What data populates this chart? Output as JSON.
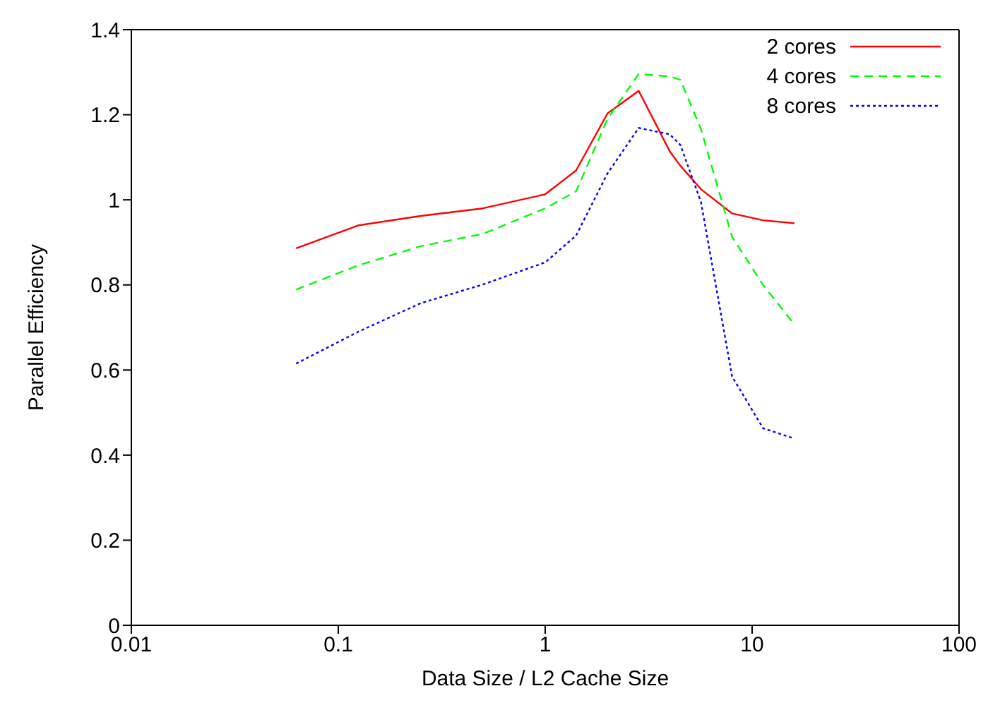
{
  "chart_data": {
    "type": "line",
    "xlabel": "Data Size / L2 Cache Size",
    "ylabel": "Parallel Efficiency",
    "log": "x",
    "xlim": [
      0.01,
      100
    ],
    "xticks": [
      0.01,
      0.1,
      1,
      10,
      100
    ],
    "ylim": [
      0,
      1.4
    ],
    "yticks": [
      0,
      0.2,
      0.4,
      0.6,
      0.8,
      1,
      1.2,
      1.4
    ],
    "legend": "top right",
    "grid": false,
    "marker": "none",
    "x": [
      0.0625,
      0.125,
      0.25,
      0.5,
      1,
      1.41,
      2,
      2.83,
      4,
      4.5,
      5.66,
      8,
      11.3,
      16
    ],
    "series": [
      {
        "name": "2 cores",
        "color": "#ff0000",
        "line_style": "solid",
        "values": [
          0.886,
          0.94,
          0.962,
          0.98,
          1.013,
          1.069,
          1.203,
          1.256,
          1.114,
          1.08,
          1.025,
          0.968,
          0.952,
          0.945
        ]
      },
      {
        "name": "4 cores",
        "color": "#00ff00",
        "line_style": "dashed",
        "values": [
          0.789,
          0.846,
          0.891,
          0.92,
          0.98,
          1.02,
          1.19,
          1.296,
          1.29,
          1.282,
          1.166,
          0.913,
          0.8,
          0.707
        ]
      },
      {
        "name": "8 cores",
        "color": "#0000ff",
        "line_style": "dotted",
        "values": [
          0.615,
          0.69,
          0.757,
          0.801,
          0.853,
          0.916,
          1.062,
          1.169,
          1.154,
          1.129,
          0.995,
          0.585,
          0.463,
          0.439
        ]
      }
    ]
  }
}
